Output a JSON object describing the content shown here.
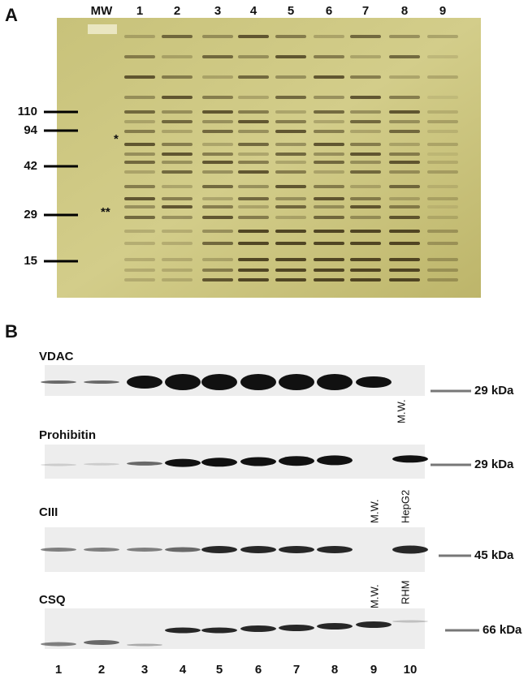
{
  "panel_a": {
    "label": "A",
    "lanes": [
      "MW",
      "1",
      "2",
      "3",
      "4",
      "5",
      "6",
      "7",
      "8",
      "9"
    ],
    "markers": [
      "110",
      "94",
      "42",
      "29",
      "15"
    ],
    "asterisks": [
      "*",
      "**"
    ]
  },
  "panel_b": {
    "label": "B",
    "blots": [
      {
        "name": "VDAC",
        "size": "29 kDa",
        "lane_notes": [
          "M.W."
        ]
      },
      {
        "name": "Prohibitin",
        "size": "29 kDa",
        "lane_notes": [
          "M.W.",
          "HepG2"
        ]
      },
      {
        "name": "CIII",
        "size": "45 kDa",
        "lane_notes": [
          "M.W.",
          "RHM"
        ]
      },
      {
        "name": "CSQ",
        "size": "66 kDa",
        "lane_notes": []
      }
    ],
    "lanes": [
      "1",
      "2",
      "3",
      "4",
      "5",
      "6",
      "7",
      "8",
      "9",
      "10"
    ]
  }
}
